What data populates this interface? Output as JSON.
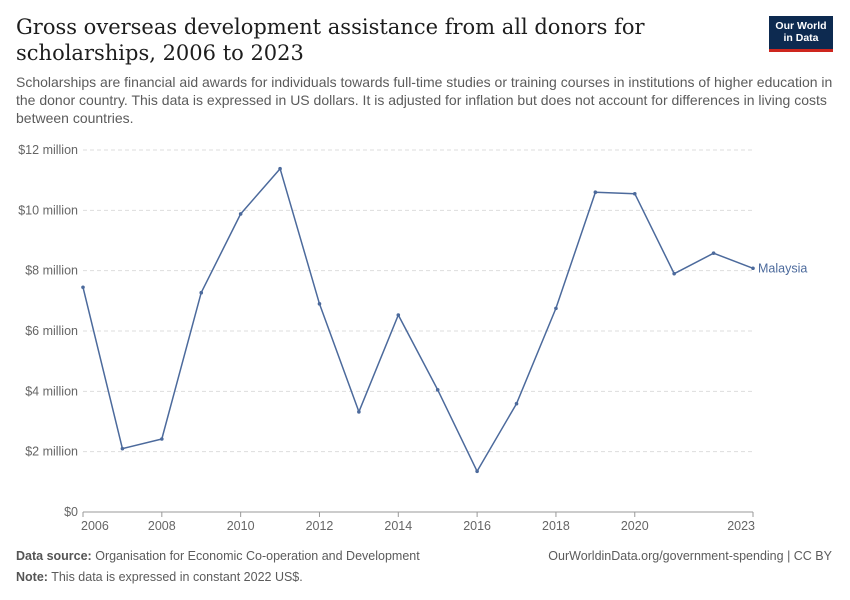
{
  "header": {
    "title": "Gross overseas development assistance from all donors for scholarships, 2006 to 2023",
    "subtitle": "Scholarships are financial aid awards for individuals towards full-time studies or training courses in institutions of higher education in the donor country. This data is expressed in US dollars. It is adjusted for inflation but does not account for differences in living costs between countries.",
    "logo_line1": "Our World",
    "logo_line2": "in Data"
  },
  "footer": {
    "source_label": "Data source:",
    "source_text": "Organisation for Economic Co-operation and Development",
    "note_label": "Note:",
    "note_text": "This data is expressed in constant 2022 US$.",
    "credit": "OurWorldinData.org/government-spending | CC BY"
  },
  "colors": {
    "series": "#4c6a9c",
    "grid": "#dddddd",
    "axis": "#999999"
  },
  "chart_data": {
    "type": "line",
    "title": "Gross overseas development assistance from all donors for scholarships, 2006 to 2023",
    "xlabel": "",
    "ylabel": "",
    "xlim": [
      2006,
      2023
    ],
    "ylim": [
      0,
      12000000
    ],
    "grid": true,
    "x_ticks": [
      2006,
      2008,
      2010,
      2012,
      2014,
      2016,
      2018,
      2020,
      2023
    ],
    "x_tick_labels": [
      "2006",
      "2008",
      "2010",
      "2012",
      "2014",
      "2016",
      "2018",
      "2020",
      "2023"
    ],
    "y_ticks": [
      0,
      2000000,
      4000000,
      6000000,
      8000000,
      10000000,
      12000000
    ],
    "y_tick_labels": [
      "$0",
      "$2 million",
      "$4 million",
      "$6 million",
      "$8 million",
      "$10 million",
      "$12 million"
    ],
    "series": [
      {
        "name": "Malaysia",
        "x": [
          2006,
          2007,
          2008,
          2009,
          2010,
          2011,
          2012,
          2013,
          2014,
          2015,
          2016,
          2017,
          2018,
          2019,
          2020,
          2021,
          2022,
          2023
        ],
        "values": [
          7450000,
          2100000,
          2420000,
          7270000,
          9880000,
          11380000,
          6900000,
          3320000,
          6530000,
          4050000,
          1350000,
          3590000,
          6750000,
          10600000,
          10550000,
          7900000,
          8580000,
          8080000
        ]
      }
    ]
  }
}
